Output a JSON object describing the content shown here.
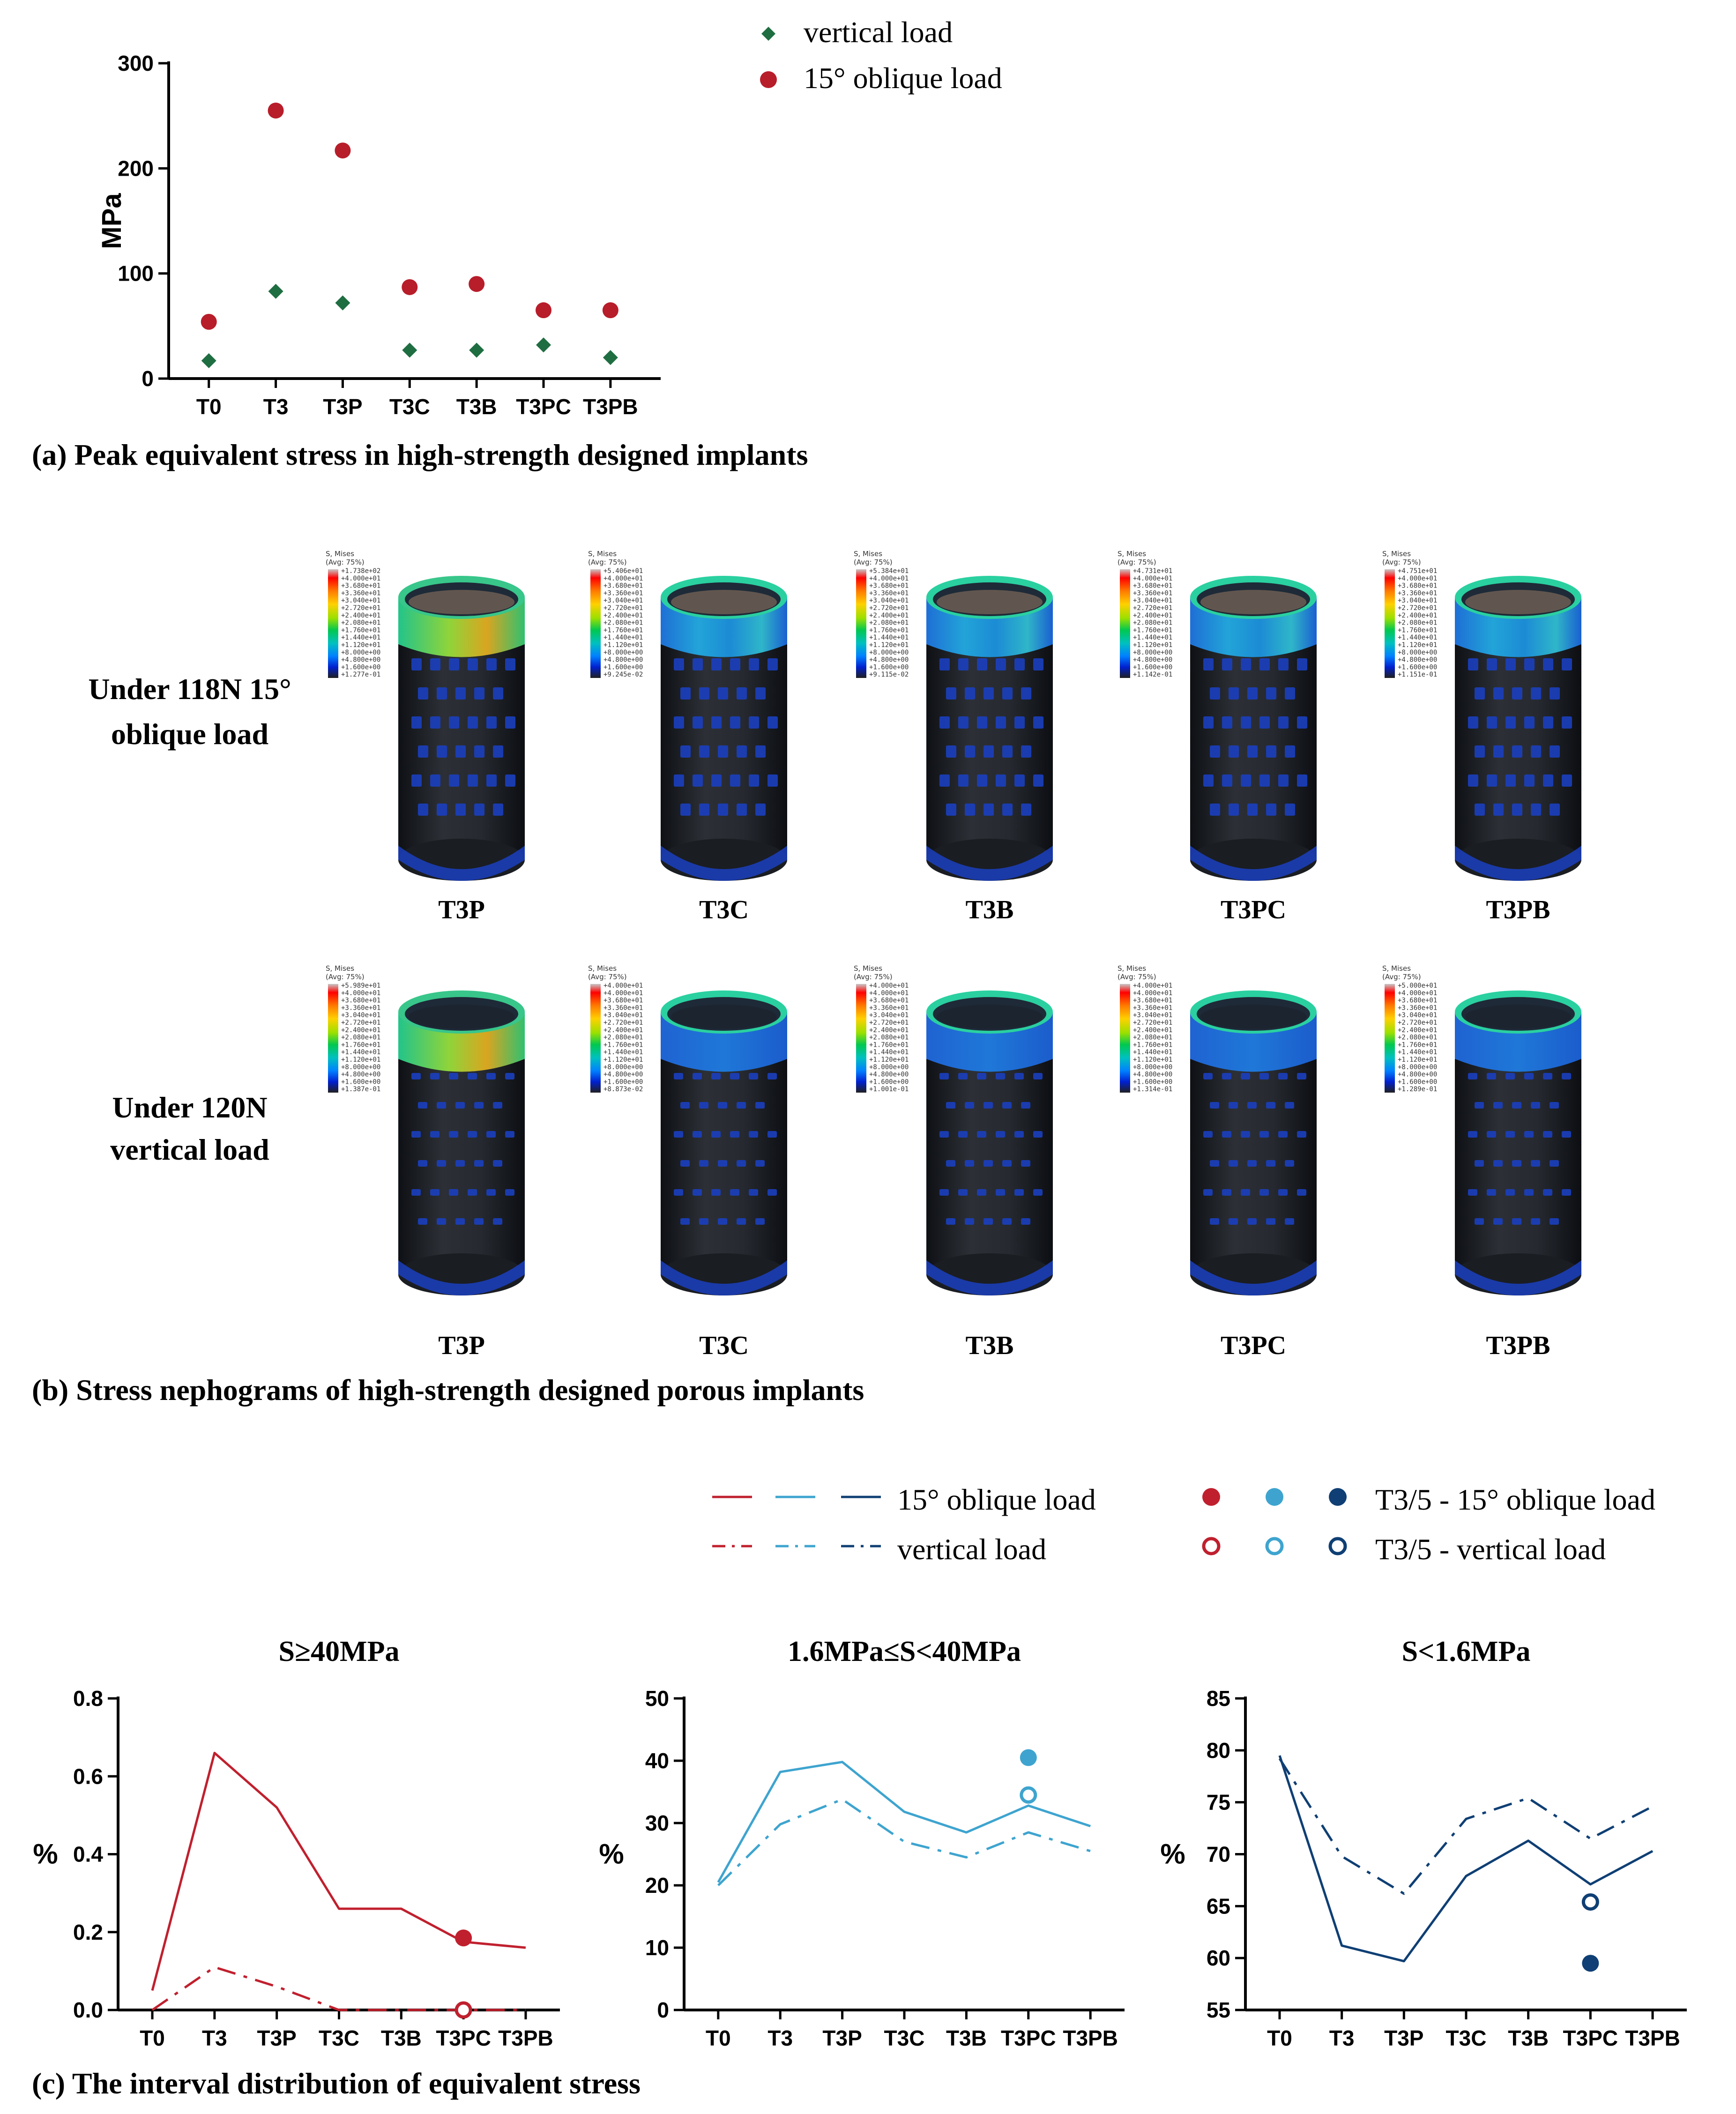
{
  "colors": {
    "vertical_marker": "#1f6e42",
    "oblique_marker": "#b81d2a",
    "red": "#c0202e",
    "light_blue": "#3ea4cf",
    "dark_blue": "#0f3f74",
    "implant_body": "#23262b",
    "implant_pore": "#1b3fbf"
  },
  "panel_a": {
    "caption": "(a) Peak equivalent stress in high-strength designed implants",
    "legend": {
      "vertical": "vertical load",
      "oblique": "15° oblique load"
    }
  },
  "panel_b": {
    "caption": "(b) Stress nephograms of high-strength designed porous implants",
    "row_labels": [
      [
        "Under 118N 15°",
        "oblique load"
      ],
      [
        "Under 120N",
        "vertical load"
      ]
    ],
    "implant_labels": [
      "T3P",
      "T3C",
      "T3B",
      "T3PC",
      "T3PB"
    ],
    "colorbar_header": [
      "S, Mises",
      "(Avg: 75%)"
    ],
    "colorbar_values": [
      "+4.000e+01",
      "+3.680e+01",
      "+3.360e+01",
      "+3.040e+01",
      "+2.720e+01",
      "+2.400e+01",
      "+2.080e+01",
      "+1.760e+01",
      "+1.440e+01",
      "+1.120e+01",
      "+8.000e+00",
      "+4.800e+00",
      "+1.600e+00"
    ],
    "colorbar_max": {
      "oblique": [
        "+1.738e+02",
        "+5.406e+01",
        "+5.384e+01",
        "+4.731e+01",
        "+4.751e+01"
      ],
      "vertical": [
        "+5.989e+01",
        "+4.000e+01",
        "+4.000e+01",
        "+4.000e+01",
        "+5.000e+01"
      ]
    },
    "colorbar_min": {
      "oblique": [
        "+1.277e-01",
        "+9.245e-02",
        "+9.115e-02",
        "+1.142e-01",
        "+1.151e-01"
      ],
      "vertical": [
        "+1.387e-01",
        "+8.873e-02",
        "+1.001e-01",
        "+1.314e-01",
        "+1.289e-01"
      ]
    }
  },
  "panel_c": {
    "caption": "(c) The interval distribution of equivalent stress",
    "legend": {
      "oblique": "15° oblique load",
      "vertical": "vertical load",
      "t35_oblique": "T3/5 - 15° oblique load",
      "t35_vertical": "T3/5 - vertical load"
    }
  },
  "chart_data": [
    {
      "type": "scatter",
      "title": "",
      "ylabel": "MPa",
      "categories": [
        "T0",
        "T3",
        "T3P",
        "T3C",
        "T3B",
        "T3PC",
        "T3PB"
      ],
      "ylim": [
        0,
        300
      ],
      "yticks": [
        0,
        100,
        200,
        300
      ],
      "series": [
        {
          "name": "vertical load",
          "values": [
            17,
            83,
            72,
            27,
            27,
            32,
            20
          ]
        },
        {
          "name": "15° oblique load",
          "values": [
            54,
            255,
            217,
            87,
            90,
            65,
            65
          ]
        }
      ]
    },
    {
      "type": "line",
      "title": "S≥40MPa",
      "ylabel": "%",
      "categories": [
        "T0",
        "T3",
        "T3P",
        "T3C",
        "T3B",
        "T3PC",
        "T3PB"
      ],
      "ylim": [
        0,
        0.8
      ],
      "yticks": [
        "0.0",
        "0.2",
        "0.4",
        "0.6",
        "0.8"
      ],
      "series": [
        {
          "name": "15° oblique load",
          "values": [
            0.05,
            0.66,
            0.52,
            0.26,
            0.26,
            0.175,
            0.16
          ]
        },
        {
          "name": "vertical load",
          "values": [
            0,
            0.11,
            0.06,
            0,
            0,
            0,
            0
          ]
        }
      ],
      "points": [
        {
          "name": "T3/5 - 15° oblique load",
          "category": "T3PC",
          "value": 0.185
        },
        {
          "name": "T3/5 - vertical load",
          "category": "T3PC",
          "value": 0
        }
      ]
    },
    {
      "type": "line",
      "title": "1.6MPa≤S<40MPa",
      "ylabel": "%",
      "categories": [
        "T0",
        "T3",
        "T3P",
        "T3C",
        "T3B",
        "T3PC",
        "T3PB"
      ],
      "ylim": [
        0,
        50
      ],
      "yticks": [
        "0",
        "10",
        "20",
        "30",
        "40",
        "50"
      ],
      "series": [
        {
          "name": "15° oblique load",
          "values": [
            20.5,
            38.2,
            39.8,
            31.8,
            28.5,
            32.8,
            29.5
          ]
        },
        {
          "name": "vertical load",
          "values": [
            20,
            29.8,
            33.8,
            27,
            24.5,
            28.5,
            25.5
          ]
        }
      ],
      "points": [
        {
          "name": "T3/5 - 15° oblique load",
          "category": "T3PC",
          "value": 40.5
        },
        {
          "name": "T3/5 - vertical load",
          "category": "T3PC",
          "value": 34.5
        }
      ]
    },
    {
      "type": "line",
      "title": "S<1.6MPa",
      "ylabel": "%",
      "categories": [
        "T0",
        "T3",
        "T3P",
        "T3C",
        "T3B",
        "T3PC",
        "T3PB"
      ],
      "ylim": [
        55,
        85
      ],
      "yticks": [
        "55",
        "60",
        "65",
        "70",
        "75",
        "80",
        "85"
      ],
      "series": [
        {
          "name": "15° oblique load",
          "values": [
            79.5,
            61.2,
            59.7,
            67.9,
            71.3,
            67.1,
            70.3
          ]
        },
        {
          "name": "vertical load",
          "values": [
            79.2,
            69.8,
            66.2,
            73.4,
            75.4,
            71.5,
            74.6
          ]
        }
      ],
      "points": [
        {
          "name": "T3/5 - 15° oblique load",
          "category": "T3PC",
          "value": 59.5
        },
        {
          "name": "T3/5 - vertical load",
          "category": "T3PC",
          "value": 65.4
        }
      ]
    }
  ]
}
